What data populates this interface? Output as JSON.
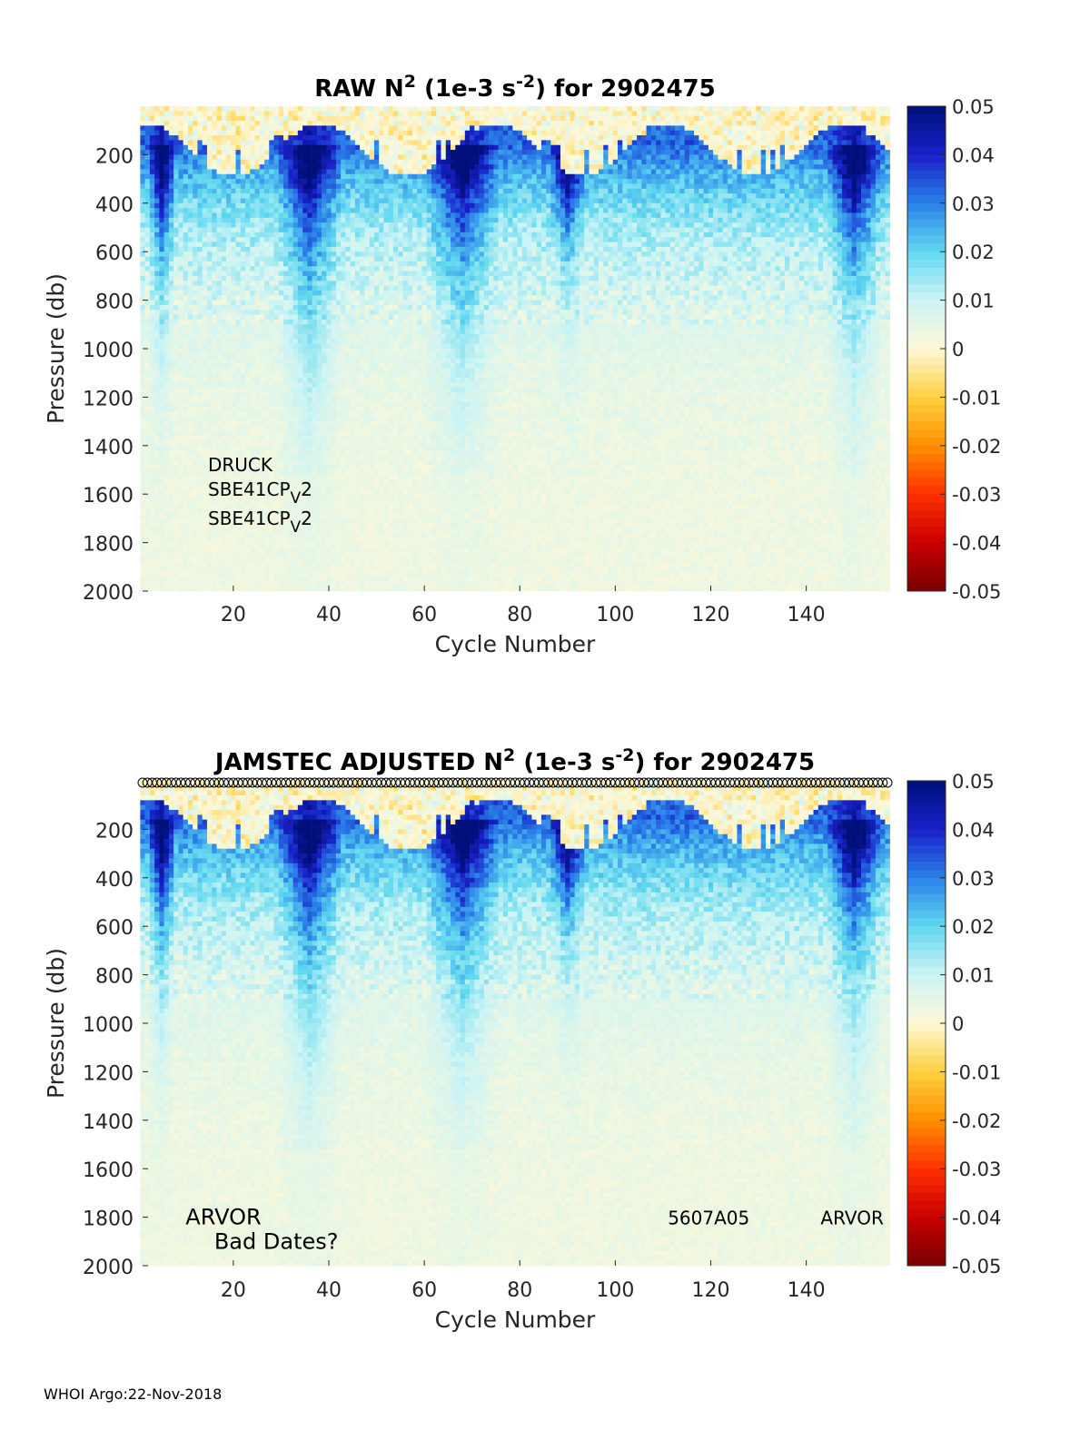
{
  "footer": "WHOI Argo:22-Nov-2018",
  "chart_data": [
    {
      "type": "heatmap",
      "title_parts": [
        "RAW N",
        "2",
        " (1e-3 s",
        "-2",
        ") for 2902475"
      ],
      "xlabel": "Cycle Number",
      "ylabel": "Pressure (db)",
      "xlim": [
        1,
        157
      ],
      "ylim": [
        0,
        2000
      ],
      "y_reversed": true,
      "xticks": [
        20,
        40,
        60,
        80,
        100,
        120,
        140
      ],
      "yticks": [
        200,
        400,
        600,
        800,
        1000,
        1200,
        1400,
        1600,
        1800,
        2000
      ],
      "colorbar": {
        "range": [
          -0.05,
          0.05
        ],
        "ticks": [
          "0.05",
          "0.04",
          "0.03",
          "0.02",
          "0.01",
          "0",
          "-0.01",
          "-0.02",
          "-0.03",
          "-0.04",
          "-0.05"
        ],
        "colormap": [
          "#7a0000",
          "#c80000",
          "#ff3000",
          "#ff9000",
          "#ffd040",
          "#fff8d8",
          "#ccf4f4",
          "#60d8f0",
          "#2a80e8",
          "#1820c8",
          "#00107a"
        ]
      },
      "strong_stratification_cycles": [
        {
          "center": 5,
          "width": 3,
          "depth": 700
        },
        {
          "center": 36,
          "width": 7,
          "depth": 1050
        },
        {
          "center": 68,
          "width": 8,
          "depth": 950
        },
        {
          "center": 90,
          "width": 4,
          "depth": 500
        },
        {
          "center": 150,
          "width": 6,
          "depth": 900
        }
      ],
      "annotations": [
        {
          "text": "DRUCK",
          "sub": ""
        },
        {
          "text": "SBE41CP",
          "sub": "V",
          "suffix": "2"
        },
        {
          "text": "SBE41CP",
          "sub": "V",
          "suffix": "2"
        }
      ],
      "markers": false
    },
    {
      "type": "heatmap",
      "title_parts": [
        "JAMSTEC  ADJUSTED N",
        "2",
        " (1e-3 s",
        "-2",
        ") for 2902475"
      ],
      "xlabel": "Cycle Number",
      "ylabel": "Pressure (db)",
      "xlim": [
        1,
        157
      ],
      "ylim": [
        0,
        2000
      ],
      "y_reversed": true,
      "xticks": [
        20,
        40,
        60,
        80,
        100,
        120,
        140
      ],
      "yticks": [
        200,
        400,
        600,
        800,
        1000,
        1200,
        1400,
        1600,
        1800,
        2000
      ],
      "colorbar": {
        "range": [
          -0.05,
          0.05
        ],
        "ticks": [
          "0.05",
          "0.04",
          "0.03",
          "0.02",
          "0.01",
          "0",
          "-0.01",
          "-0.02",
          "-0.03",
          "-0.04",
          "-0.05"
        ],
        "colormap": [
          "#7a0000",
          "#c80000",
          "#ff3000",
          "#ff9000",
          "#ffd040",
          "#fff8d8",
          "#ccf4f4",
          "#60d8f0",
          "#2a80e8",
          "#1820c8",
          "#00107a"
        ]
      },
      "strong_stratification_cycles": [
        {
          "center": 5,
          "width": 3,
          "depth": 700
        },
        {
          "center": 36,
          "width": 7,
          "depth": 1050
        },
        {
          "center": 68,
          "width": 8,
          "depth": 950
        },
        {
          "center": 90,
          "width": 4,
          "depth": 500
        },
        {
          "center": 150,
          "width": 6,
          "depth": 900
        }
      ],
      "annotations": [
        {
          "text": "ARVOR",
          "anchor_cycle": 10,
          "anchor_pressure": 1800
        },
        {
          "text": "Bad Dates?",
          "anchor_cycle": 16,
          "anchor_pressure": 1900
        },
        {
          "text": "5607A05",
          "anchor_cycle": 111,
          "anchor_pressure": 1800
        },
        {
          "text": "ARVOR",
          "anchor_cycle": 143,
          "anchor_pressure": 1800
        }
      ],
      "markers": true,
      "marker_cycles_count": 157
    }
  ]
}
